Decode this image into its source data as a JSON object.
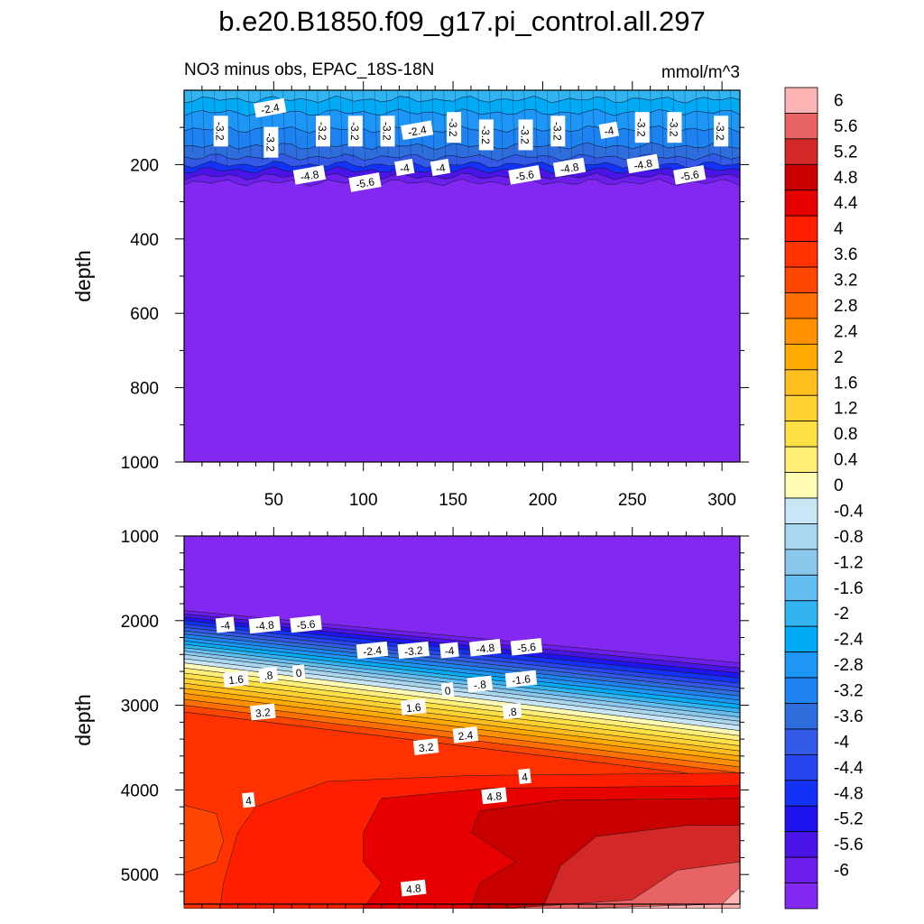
{
  "title": "b.e20.B1850.f09_g17.pi_control.all.297",
  "subtitle_left": "NO3 minus obs, EPAC_18S-18N",
  "subtitle_right": "mmol/m^3",
  "chart_data": [
    {
      "type": "heatmap",
      "panel": "upper",
      "ylabel": "depth",
      "ylim": [
        1000,
        0
      ],
      "xlim": [
        0,
        310
      ],
      "yticks": [
        "200",
        "400",
        "600",
        "800",
        "1000"
      ],
      "xticks": [
        "50",
        "100",
        "150",
        "200",
        "250",
        "300"
      ],
      "fill_value": -6.4,
      "contour_labels": [
        {
          "text": "-2.4",
          "x": 48,
          "y": 50
        },
        {
          "text": "-3.2",
          "x": 20,
          "y": 110
        },
        {
          "text": "-3.2",
          "x": 48,
          "y": 140
        },
        {
          "text": "-3.2",
          "x": 77,
          "y": 110
        },
        {
          "text": "-3.2",
          "x": 95,
          "y": 110
        },
        {
          "text": "-3.2",
          "x": 113,
          "y": 110
        },
        {
          "text": "-2.4",
          "x": 130,
          "y": 110
        },
        {
          "text": "-3.2",
          "x": 150,
          "y": 100
        },
        {
          "text": "-3.2",
          "x": 168,
          "y": 120
        },
        {
          "text": "-3.2",
          "x": 190,
          "y": 120
        },
        {
          "text": "-3.2",
          "x": 208,
          "y": 110
        },
        {
          "text": "-4",
          "x": 237,
          "y": 110
        },
        {
          "text": "-3.2",
          "x": 255,
          "y": 100
        },
        {
          "text": "-3.2",
          "x": 273,
          "y": 100
        },
        {
          "text": "-3.2",
          "x": 299,
          "y": 110
        },
        {
          "text": "-4.8",
          "x": 70,
          "y": 230
        },
        {
          "text": "-5.6",
          "x": 101,
          "y": 250
        },
        {
          "text": "-4",
          "x": 123,
          "y": 210
        },
        {
          "text": "-4",
          "x": 143,
          "y": 210
        },
        {
          "text": "-5.6",
          "x": 190,
          "y": 230
        },
        {
          "text": "-4.8",
          "x": 215,
          "y": 210
        },
        {
          "text": "-4.8",
          "x": 256,
          "y": 200
        },
        {
          "text": "-5.6",
          "x": 282,
          "y": 230
        }
      ]
    },
    {
      "type": "heatmap",
      "panel": "lower",
      "ylabel": "depth",
      "ylim": [
        5350,
        1000
      ],
      "xlim": [
        0,
        310
      ],
      "yticks": [
        "1000",
        "2000",
        "3000",
        "4000",
        "5000"
      ],
      "contour_labels": [
        {
          "text": "-4",
          "x": 23,
          "y": 2060
        },
        {
          "text": "-4.8",
          "x": 45,
          "y": 2060
        },
        {
          "text": "-5.6",
          "x": 68,
          "y": 2050
        },
        {
          "text": "-2.4",
          "x": 105,
          "y": 2360
        },
        {
          "text": "-3.2",
          "x": 128,
          "y": 2360
        },
        {
          "text": "-4",
          "x": 148,
          "y": 2360
        },
        {
          "text": "-4.8",
          "x": 168,
          "y": 2330
        },
        {
          "text": "-5.6",
          "x": 191,
          "y": 2320
        },
        {
          "text": "1.6",
          "x": 29,
          "y": 2700
        },
        {
          "text": ".8",
          "x": 47,
          "y": 2650
        },
        {
          "text": "0",
          "x": 64,
          "y": 2620
        },
        {
          "text": "-1.6",
          "x": 188,
          "y": 2700
        },
        {
          "text": "-.8",
          "x": 165,
          "y": 2760
        },
        {
          "text": "0",
          "x": 147,
          "y": 2830
        },
        {
          "text": ".8",
          "x": 183,
          "y": 3080
        },
        {
          "text": "1.6",
          "x": 128,
          "y": 3030
        },
        {
          "text": "2.4",
          "x": 157,
          "y": 3360
        },
        {
          "text": "3.2",
          "x": 44,
          "y": 3090
        },
        {
          "text": "3.2",
          "x": 135,
          "y": 3500
        },
        {
          "text": "4",
          "x": 190,
          "y": 3850
        },
        {
          "text": "4.8",
          "x": 173,
          "y": 4080
        },
        {
          "text": "4",
          "x": 36,
          "y": 4130
        },
        {
          "text": "4.8",
          "x": 128,
          "y": 5170
        }
      ]
    }
  ],
  "colorbar": {
    "labels": [
      "6",
      "5.6",
      "5.2",
      "4.8",
      "4.4",
      "4",
      "3.6",
      "3.2",
      "2.8",
      "2.4",
      "2",
      "1.6",
      "1.2",
      "0.8",
      "0.4",
      "0",
      "-0.4",
      "-0.8",
      "-1.2",
      "-1.6",
      "-2",
      "-2.4",
      "-2.8",
      "-3.2",
      "-3.6",
      "-4",
      "-4.4",
      "-4.8",
      "-5.2",
      "-5.6",
      "-6"
    ],
    "colors": [
      "#ffb4b4",
      "#e86464",
      "#d22828",
      "#c80000",
      "#e60000",
      "#ff1e00",
      "#ff3200",
      "#ff4600",
      "#ff6e00",
      "#ff9100",
      "#ffaa00",
      "#ffbe1e",
      "#ffd232",
      "#ffe146",
      "#ffee78",
      "#fffab4",
      "#c8e6f5",
      "#aad7f0",
      "#8cc8eb",
      "#64bef0",
      "#32b4f0",
      "#00aaf5",
      "#1e96f5",
      "#1e82f0",
      "#2d6edc",
      "#325ae6",
      "#2846f0",
      "#1432f5",
      "#1e14f0",
      "#4b14e6",
      "#6e1eeb",
      "#8228f0"
    ]
  }
}
